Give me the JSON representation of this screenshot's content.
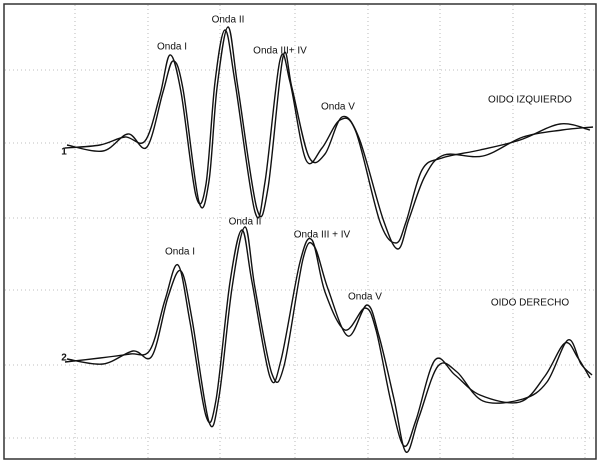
{
  "traces": [
    {
      "label": "OIDO IZQUIERDO",
      "marker": "1",
      "peaks": [
        "Onda I",
        "Onda II",
        "Onda III+ IV",
        "Onda V"
      ]
    },
    {
      "label": "OIDO DERECHO",
      "marker": "2",
      "peaks": [
        "Onda I",
        "Onda II",
        "Onda III + IV",
        "Onda V"
      ]
    }
  ]
}
